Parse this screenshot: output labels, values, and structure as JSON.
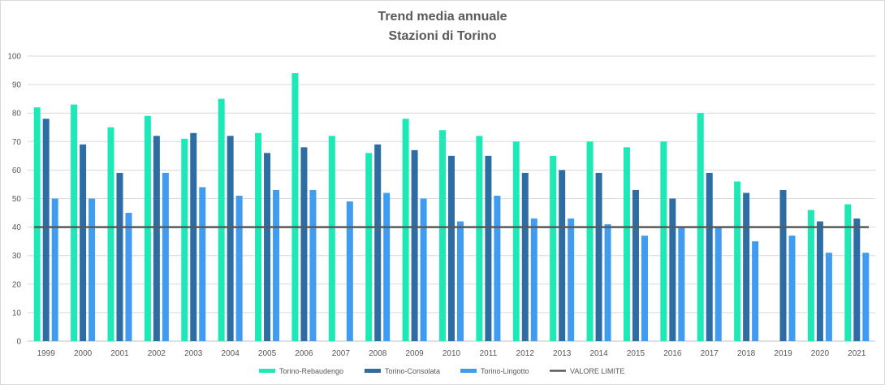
{
  "chart_data": {
    "type": "bar",
    "title_line1": "Trend media annuale",
    "title_line2": "Stazioni di Torino",
    "xlabel": "",
    "ylabel": "",
    "ylim": [
      0,
      100
    ],
    "yticks": [
      "0",
      "10",
      "20",
      "30",
      "40",
      "50",
      "60",
      "70",
      "80",
      "90",
      "100"
    ],
    "grid": true,
    "legend_position": "bottom",
    "categories": [
      "1999",
      "2000",
      "2001",
      "2002",
      "2003",
      "2004",
      "2005",
      "2006",
      "2007",
      "2008",
      "2009",
      "2010",
      "2011",
      "2012",
      "2013",
      "2014",
      "2015",
      "2016",
      "2017",
      "2018",
      "2019",
      "2020",
      "2021"
    ],
    "series": [
      {
        "name": "Torino-Rebaudengo",
        "color": "#1de9b6",
        "values": [
          82,
          83,
          75,
          79,
          71,
          85,
          73,
          94,
          72,
          66,
          78,
          74,
          72,
          70,
          65,
          70,
          68,
          70,
          80,
          56,
          null,
          46,
          48
        ]
      },
      {
        "name": "Torino-Consolata",
        "color": "#2e6da4",
        "values": [
          78,
          69,
          59,
          72,
          73,
          72,
          66,
          68,
          null,
          69,
          67,
          65,
          65,
          59,
          60,
          59,
          53,
          50,
          59,
          52,
          53,
          42,
          43
        ]
      },
      {
        "name": "Torino-Lingotto",
        "color": "#3f9cf0",
        "values": [
          50,
          50,
          45,
          59,
          54,
          51,
          53,
          53,
          49,
          52,
          50,
          42,
          51,
          43,
          43,
          41,
          37,
          40,
          40,
          35,
          37,
          31,
          31
        ]
      }
    ],
    "reference_line": {
      "name": "VALORE LIMITE",
      "value": 40,
      "color": "#595959"
    }
  }
}
